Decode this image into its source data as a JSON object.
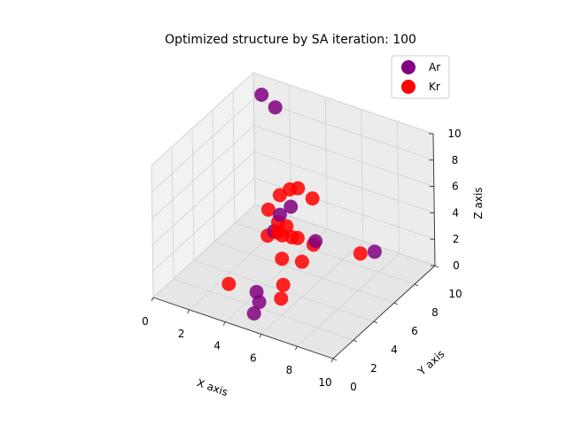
{
  "chart_data": {
    "type": "scatter",
    "title": "Optimized structure by SA iteration: 100",
    "xlabel": "X axis",
    "ylabel": "Y axis",
    "zlabel": "Z axis",
    "xlim": [
      0,
      10
    ],
    "ylim": [
      0,
      10
    ],
    "zlim": [
      0,
      10
    ],
    "x_ticks": [
      "0",
      "2",
      "4",
      "6",
      "8",
      "10"
    ],
    "y_ticks": [
      "0",
      "2",
      "4",
      "6",
      "8",
      "10"
    ],
    "z_ticks": [
      "0",
      "2",
      "4",
      "6",
      "8",
      "10"
    ],
    "grid": true,
    "legend_position": "top-right",
    "series": [
      {
        "name": "Ar",
        "color": "#800080",
        "points": [
          {
            "x": 0.9,
            "y": 9.2,
            "z": 9.3
          },
          {
            "x": 1.6,
            "y": 9.3,
            "z": 8.6
          },
          {
            "x": 5.1,
            "y": 4.6,
            "z": 6.0
          },
          {
            "x": 4.6,
            "y": 4.4,
            "z": 5.3
          },
          {
            "x": 4.2,
            "y": 4.5,
            "z": 3.8
          },
          {
            "x": 6.8,
            "y": 4.0,
            "z": 4.6
          },
          {
            "x": 8.6,
            "y": 6.6,
            "z": 2.8
          },
          {
            "x": 5.6,
            "y": 0.3,
            "z": 2.8
          },
          {
            "x": 5.8,
            "y": 0.2,
            "z": 2.2
          },
          {
            "x": 5.5,
            "y": 0.2,
            "z": 1.2
          }
        ]
      },
      {
        "name": "Kr",
        "color": "#ff0000",
        "points": [
          {
            "x": 5.0,
            "y": 4.7,
            "z": 7.2
          },
          {
            "x": 5.4,
            "y": 4.8,
            "z": 7.4
          },
          {
            "x": 6.2,
            "y": 4.8,
            "z": 7.0
          },
          {
            "x": 4.5,
            "y": 4.6,
            "z": 6.6
          },
          {
            "x": 3.9,
            "y": 4.5,
            "z": 5.3
          },
          {
            "x": 4.5,
            "y": 4.4,
            "z": 4.7
          },
          {
            "x": 4.9,
            "y": 4.5,
            "z": 4.5
          },
          {
            "x": 5.2,
            "y": 4.5,
            "z": 3.8
          },
          {
            "x": 5.4,
            "y": 4.7,
            "z": 3.7
          },
          {
            "x": 4.6,
            "y": 4.6,
            "z": 3.6
          },
          {
            "x": 4.4,
            "y": 4.5,
            "z": 3.8
          },
          {
            "x": 6.4,
            "y": 4.5,
            "z": 3.8
          },
          {
            "x": 3.9,
            "y": 4.4,
            "z": 3.4
          },
          {
            "x": 4.8,
            "y": 4.2,
            "z": 2.2
          },
          {
            "x": 5.8,
            "y": 4.4,
            "z": 2.3
          },
          {
            "x": 5.6,
            "y": 2.9,
            "z": 1.5
          },
          {
            "x": 7.8,
            "y": 6.6,
            "z": 2.3
          },
          {
            "x": 5.7,
            "y": 2.5,
            "z": 0.8
          },
          {
            "x": 4.0,
            "y": 0.4,
            "z": 2.6
          }
        ]
      }
    ]
  }
}
